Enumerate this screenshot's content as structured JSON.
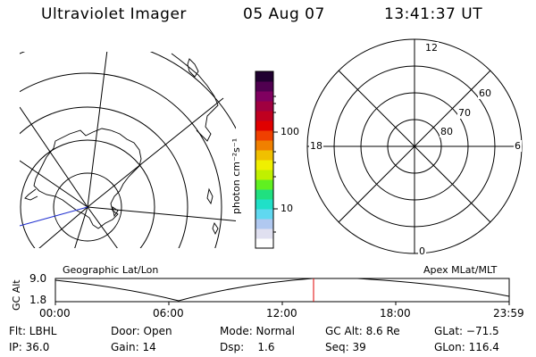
{
  "header": {
    "instrument": "Ultraviolet Imager",
    "date": "05 Aug 07",
    "time": "13:41:37 UT"
  },
  "colorbar": {
    "unit_label": "photon cm⁻²s⁻¹",
    "tick_100": "100",
    "tick_10": "10",
    "colors": [
      "#ffffff",
      "#e0e0f0",
      "#b0c8f0",
      "#60d8f0",
      "#20e0c8",
      "#20e080",
      "#60f020",
      "#c0f000",
      "#f0f000",
      "#f0c000",
      "#f08000",
      "#f04000",
      "#e00000",
      "#c00020",
      "#a00040",
      "#800060",
      "#500050",
      "#200030"
    ]
  },
  "right_plot": {
    "labels": {
      "top": "12",
      "bottom": "0",
      "left": "18",
      "right": "6",
      "lat60": "60",
      "lat70": "70",
      "lat80": "80"
    }
  },
  "timeline": {
    "left_label": "Geographic Lat/Lon",
    "right_label": "Apex MLat/MLT",
    "axis_title": "GC Alt",
    "y_top": "9.0",
    "y_bottom": "1.8",
    "x_ticks": [
      "00:00",
      "06:00",
      "12:00",
      "18:00",
      "23:59"
    ],
    "marker_color": "#e00000"
  },
  "status": {
    "flt": "Flt: LBHL",
    "ip": "IP: 36.0",
    "door": "Door: Open",
    "gain": "Gain: 14",
    "mode": "Mode: Normal",
    "dsp": "Dsp:    1.6",
    "gcalt": "GC Alt: 8.6 Re",
    "seq": "Seq: 39",
    "glat": "GLat: −71.5",
    "glon": "GLon: 116.4"
  }
}
